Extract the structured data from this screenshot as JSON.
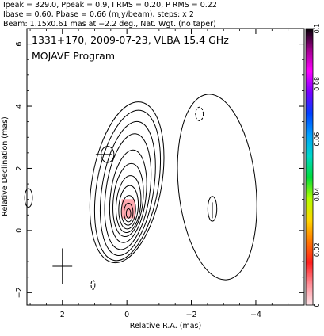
{
  "header": {
    "line1": "Ipeak = 329.0, Ppeak = 0.9, I RMS = 0.20, P RMS = 0.22",
    "line2": "Ibase = 0.60, Pbase = 0.66 (mJy/beam), steps: x 2",
    "line3": "Beam: 1.15x0.61 mas at −2.2 deg., Nat. Wgt. (no taper)"
  },
  "chart_data": {
    "type": "contour",
    "title": "1331+170, 2009-07-23, VLBA 15.4 GHz",
    "subtitle": "MOJAVE Program",
    "xlabel": "Relative R.A. (mas)",
    "ylabel": "Relative Declination (mas)",
    "xlim": [
      3.1,
      -5.5
    ],
    "ylim": [
      -2.4,
      6.5
    ],
    "x_ticks": [
      2,
      0,
      -2,
      -4
    ],
    "x_tick_labels": [
      "2",
      "0",
      "−2",
      "−4"
    ],
    "y_ticks": [
      -2,
      0,
      2,
      4,
      6
    ],
    "y_tick_labels": [
      "−2",
      "0",
      "2",
      "4",
      "6"
    ],
    "contour_base_mJy_per_beam": 0.6,
    "contour_step_factor": 2,
    "core": {
      "x": -0.05,
      "y": 0.55
    },
    "core_contours": [
      {
        "cx": 0.0,
        "cy": 1.55,
        "rx": 1.08,
        "ry": 2.62,
        "tilt": 10
      },
      {
        "cx": -0.02,
        "cy": 1.45,
        "rx": 0.95,
        "ry": 2.45,
        "tilt": 10
      },
      {
        "cx": -0.03,
        "cy": 1.35,
        "rx": 0.8,
        "ry": 2.18,
        "tilt": 9
      },
      {
        "cx": -0.03,
        "cy": 1.25,
        "rx": 0.68,
        "ry": 1.88,
        "tilt": 8
      },
      {
        "cx": -0.04,
        "cy": 1.1,
        "rx": 0.55,
        "ry": 1.5,
        "tilt": 7
      },
      {
        "cx": -0.04,
        "cy": 0.98,
        "rx": 0.46,
        "ry": 1.18,
        "tilt": 6
      },
      {
        "cx": -0.05,
        "cy": 0.85,
        "rx": 0.38,
        "ry": 0.92,
        "tilt": 5
      },
      {
        "cx": -0.05,
        "cy": 0.75,
        "rx": 0.3,
        "ry": 0.7,
        "tilt": 4
      },
      {
        "cx": -0.05,
        "cy": 0.65,
        "rx": 0.22,
        "ry": 0.48,
        "tilt": 3
      },
      {
        "cx": -0.05,
        "cy": 0.58,
        "rx": 0.14,
        "ry": 0.3,
        "tilt": 0
      },
      {
        "cx": -0.05,
        "cy": 0.55,
        "rx": 0.07,
        "ry": 0.15,
        "tilt": 0
      }
    ],
    "knot_contours": [
      {
        "cx": 0.6,
        "cy": 2.45,
        "rx": 0.2,
        "ry": 0.26,
        "tilt": 0
      }
    ],
    "lobe_contours": [
      {
        "cx": -2.8,
        "cy": 1.4,
        "rx": 1.2,
        "ry": 3.0,
        "tilt": -6
      },
      {
        "cx": -2.65,
        "cy": 0.7,
        "rx": 0.14,
        "ry": 0.4,
        "tilt": 0
      }
    ],
    "edge_contours": [
      {
        "cx": 3.05,
        "cy": 1.05,
        "rx": 0.12,
        "ry": 0.3,
        "tilt": 0
      }
    ],
    "negative_contours": [
      {
        "cx": -2.25,
        "cy": 3.75,
        "rx": 0.12,
        "ry": 0.22,
        "tilt": 0
      },
      {
        "cx": 1.05,
        "cy": -1.75,
        "rx": 0.06,
        "ry": 0.15,
        "tilt": 0
      }
    ],
    "polarization_ticks": [
      {
        "x": 0.72,
        "y": 2.45,
        "angle": 0
      },
      {
        "x": -2.65,
        "y": 0.65,
        "angle": 90
      }
    ],
    "pol_patch": {
      "x": -0.05,
      "y": 0.7,
      "w": 0.42,
      "h": 0.62
    },
    "beam": {
      "x": 2.0,
      "y": -1.15,
      "major": 1.15,
      "minor": 0.61,
      "pa_deg": -2.2
    },
    "colorbar": {
      "min": 0,
      "max": 0.1,
      "ticks": [
        0,
        0.02,
        0.04,
        0.06,
        0.08,
        0.1
      ],
      "tick_labels": [
        "0",
        "0.02",
        "0.04",
        "0.06",
        "0.08",
        "0.1"
      ],
      "colors": [
        "#ffe6ea",
        "#ff8c96",
        "#ff1e1e",
        "#ff7800",
        "#ffd700",
        "#b4ff00",
        "#00dc3c",
        "#00d8c8",
        "#00a0ff",
        "#0040ff",
        "#7800ff",
        "#ff00ff",
        "#a0008c",
        "#000000"
      ]
    }
  }
}
